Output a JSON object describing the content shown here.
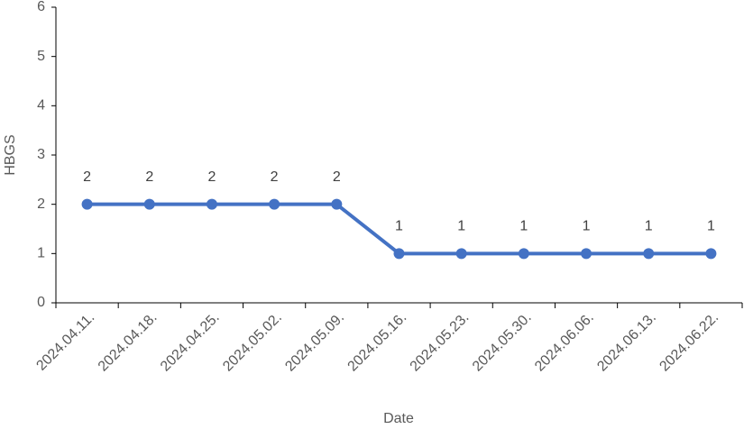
{
  "chart_data": {
    "type": "line",
    "x_label": "Date",
    "y_label": "HBGS",
    "categories": [
      "2024.04.11.",
      "2024.04.18.",
      "2024.04.25.",
      "2024.05.02.",
      "2024.05.09.",
      "2024.05.16.",
      "2024.05.23.",
      "2024.05.30.",
      "2024.06.06.",
      "2024.06.13.",
      "2024.06.22."
    ],
    "values": [
      2,
      2,
      2,
      2,
      2,
      1,
      1,
      1,
      1,
      1,
      1
    ],
    "color": "#4472c4",
    "ylim": [
      0,
      6
    ],
    "yticks": [
      0,
      1,
      2,
      3,
      4,
      5,
      6
    ],
    "grid": false,
    "data_labels": true
  }
}
